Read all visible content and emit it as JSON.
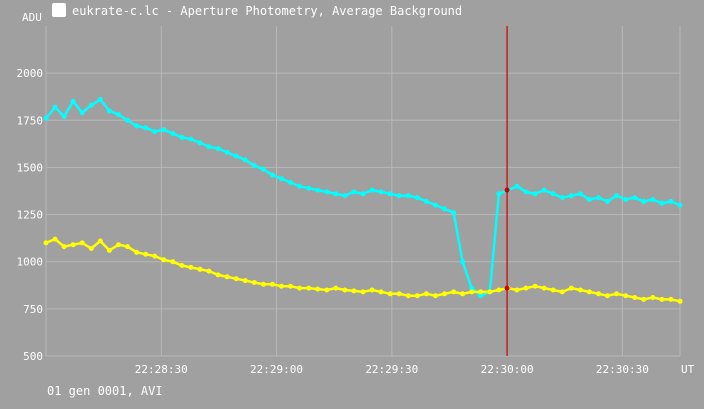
{
  "window": {
    "title": "eukrate-c.lc - Aperture Photometry, Average Background",
    "icon": "lightcurve-app-icon"
  },
  "status": {
    "text": "01 gen 0001, AVI"
  },
  "colors": {
    "background": "#a0a0a0",
    "grid": "#b8b8b8",
    "text": "#ffffff",
    "series_cyan": "#00ffff",
    "series_yellow": "#ffff00",
    "cursor": "#cc0000"
  },
  "chart_data": {
    "type": "line",
    "xlabel": "UT",
    "ylabel": "ADU",
    "x_tick_labels": [
      "22:28:30",
      "22:29:00",
      "22:29:30",
      "22:30:00",
      "22:30:30"
    ],
    "x_tick_seconds": [
      30,
      60,
      90,
      120,
      150
    ],
    "xlim_seconds": [
      0,
      165
    ],
    "ylim": [
      500,
      2250
    ],
    "y_tick_labels": [
      "500",
      "750",
      "1000",
      "1250",
      "1500",
      "1750",
      "2000"
    ],
    "y_ticks": [
      500,
      750,
      1000,
      1250,
      1500,
      1750,
      2000
    ],
    "cursor_x_seconds": 120,
    "grid": true,
    "series": [
      {
        "color": "#00ffff",
        "values": [
          1760,
          1820,
          1770,
          1850,
          1790,
          1830,
          1860,
          1800,
          1780,
          1750,
          1720,
          1710,
          1690,
          1700,
          1680,
          1660,
          1650,
          1630,
          1610,
          1600,
          1580,
          1560,
          1540,
          1510,
          1490,
          1460,
          1440,
          1420,
          1400,
          1390,
          1380,
          1370,
          1360,
          1350,
          1370,
          1360,
          1380,
          1370,
          1360,
          1350,
          1350,
          1340,
          1320,
          1300,
          1280,
          1260,
          1000,
          860,
          820,
          840,
          1360,
          1380,
          1400,
          1370,
          1360,
          1380,
          1360,
          1340,
          1350,
          1360,
          1330,
          1340,
          1320,
          1350,
          1330,
          1340,
          1320,
          1330,
          1310,
          1320,
          1300
        ]
      },
      {
        "color": "#ffff00",
        "values": [
          1100,
          1120,
          1080,
          1090,
          1100,
          1070,
          1110,
          1060,
          1090,
          1080,
          1050,
          1040,
          1030,
          1010,
          1000,
          980,
          970,
          960,
          950,
          930,
          920,
          910,
          900,
          890,
          880,
          880,
          870,
          870,
          860,
          860,
          855,
          850,
          860,
          850,
          845,
          840,
          850,
          840,
          830,
          830,
          820,
          820,
          830,
          820,
          830,
          840,
          830,
          840,
          840,
          840,
          850,
          860,
          850,
          860,
          870,
          860,
          850,
          840,
          860,
          850,
          840,
          830,
          820,
          830,
          820,
          810,
          800,
          810,
          800,
          800,
          790
        ]
      }
    ]
  }
}
